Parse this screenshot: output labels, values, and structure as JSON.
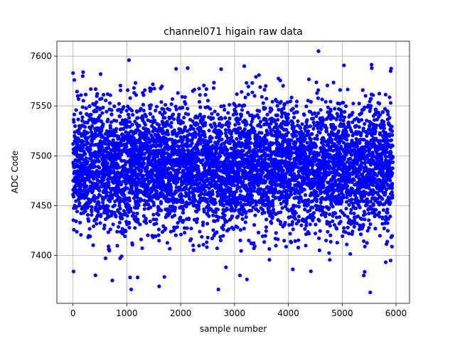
{
  "chart_data": {
    "type": "scatter",
    "title": "channel071 higain raw data",
    "xlabel": "sample number",
    "ylabel": "ADC Code",
    "xlim": [
      -300,
      6250
    ],
    "ylim": [
      7352,
      7615
    ],
    "xticks": [
      0,
      1000,
      2000,
      3000,
      4000,
      5000,
      6000
    ],
    "yticks": [
      7400,
      7450,
      7500,
      7550,
      7600
    ],
    "grid": true,
    "marker_color": "#0000ff",
    "n_samples": 5940,
    "series": [
      {
        "x_start": 0,
        "x_end": 5939,
        "center": 7489,
        "core_range": [
          7435,
          7545
        ],
        "extremes": [
          {
            "x": 10,
            "y": 7384
          },
          {
            "x": 0,
            "y": 7583
          },
          {
            "x": 180,
            "y": 7580
          },
          {
            "x": 1040,
            "y": 7596
          },
          {
            "x": 1080,
            "y": 7366
          },
          {
            "x": 1060,
            "y": 7378
          },
          {
            "x": 1200,
            "y": 7378
          },
          {
            "x": 730,
            "y": 7375
          },
          {
            "x": 1600,
            "y": 7369
          },
          {
            "x": 2130,
            "y": 7588
          },
          {
            "x": 2700,
            "y": 7366
          },
          {
            "x": 2750,
            "y": 7587
          },
          {
            "x": 3100,
            "y": 7380
          },
          {
            "x": 3180,
            "y": 7590
          },
          {
            "x": 3230,
            "y": 7376
          },
          {
            "x": 4560,
            "y": 7605
          },
          {
            "x": 5400,
            "y": 7380
          },
          {
            "x": 5520,
            "y": 7363
          },
          {
            "x": 5550,
            "y": 7588
          },
          {
            "x": 5900,
            "y": 7585
          },
          {
            "x": 5900,
            "y": 7395
          }
        ]
      }
    ]
  }
}
